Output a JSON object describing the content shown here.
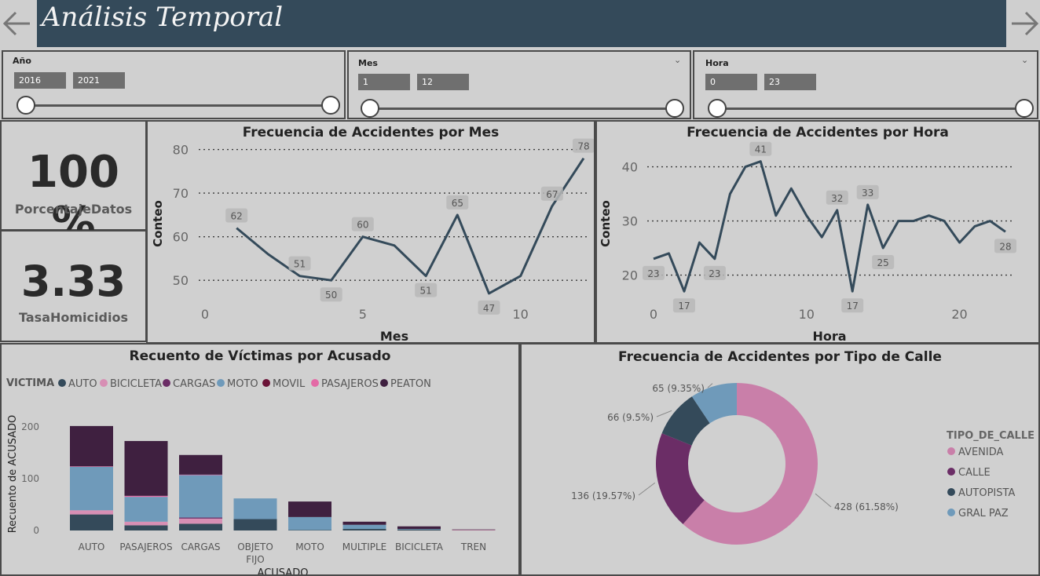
{
  "header": {
    "title": "Análisis Temporal"
  },
  "filters": [
    {
      "label": "Año",
      "from": "2016",
      "to": "2021"
    },
    {
      "label": "Mes",
      "from": "1",
      "to": "12"
    },
    {
      "label": "Hora",
      "from": "0",
      "to": "23"
    }
  ],
  "cards": [
    {
      "value": "100 %",
      "label": "PorcentajeDatos"
    },
    {
      "value": "3.33",
      "label": "TasaHomicidios"
    }
  ],
  "colors": {
    "line": "#344a5a",
    "AUTO": "#344a5a",
    "BICICLETA": "#d78fb4",
    "CARGAS": "#6b2d66",
    "MOTO": "#6f9aba",
    "MOVIL": "#6b1438",
    "PASAJEROS": "#e36aa6",
    "PEATON": "#3f2040",
    "AVENIDA": "#c97fa9",
    "CALLE": "#6b2d66",
    "AUTOPISTA": "#344a5a",
    "GRAL PAZ": "#6f9aba"
  },
  "chart_data": [
    {
      "type": "line",
      "title": "Frecuencia de Accidentes por Mes",
      "xlabel": "Mes",
      "ylabel": "Conteo",
      "x": [
        1,
        2,
        3,
        4,
        5,
        6,
        7,
        8,
        9,
        10,
        11,
        12
      ],
      "values": [
        62,
        56,
        51,
        50,
        60,
        58,
        51,
        65,
        47,
        51,
        67,
        78
      ],
      "data_labels": [
        "62",
        "",
        "51",
        "50",
        "60",
        "",
        "51",
        "65",
        "47",
        "",
        "67",
        "78"
      ],
      "x_ticks": [
        "0",
        "5",
        "10"
      ],
      "y_ticks": [
        "50",
        "60",
        "70",
        "80"
      ],
      "ylim": [
        45,
        81
      ],
      "grid": true
    },
    {
      "type": "line",
      "title": "Frecuencia de Accidentes por Hora",
      "xlabel": "Hora",
      "ylabel": "Conteo",
      "x": [
        0,
        1,
        2,
        3,
        4,
        5,
        6,
        7,
        8,
        9,
        10,
        11,
        12,
        13,
        14,
        15,
        16,
        17,
        18,
        19,
        20,
        21,
        22,
        23
      ],
      "values": [
        23,
        24,
        17,
        26,
        23,
        35,
        40,
        41,
        31,
        36,
        31,
        27,
        32,
        17,
        33,
        25,
        30,
        30,
        31,
        30,
        26,
        29,
        30,
        28
      ],
      "data_labels": [
        "23",
        "",
        "17",
        "",
        "23",
        "",
        "",
        "41",
        "",
        "",
        "",
        "",
        "32",
        "17",
        "33",
        "25",
        "",
        "",
        "",
        "",
        "",
        "",
        "",
        "28"
      ],
      "x_ticks": [
        "0",
        "10",
        "20"
      ],
      "y_ticks": [
        "20",
        "30",
        "40"
      ],
      "ylim": [
        15,
        44
      ],
      "grid": true
    },
    {
      "type": "bar",
      "title": "Recuento de Víctimas por Acusado",
      "xlabel": "ACUSADO",
      "ylabel": "Recuento de ACUSADO",
      "legend_title": "VICTIMA",
      "categories": [
        "AUTO",
        "PASAJEROS",
        "CARGAS",
        "OBJETO FIJO",
        "MOTO",
        "MULTIPLE",
        "BICICLETA",
        "TREN"
      ],
      "series": [
        {
          "name": "AUTO",
          "values": [
            31,
            10,
            13,
            22,
            1,
            3,
            2,
            0
          ]
        },
        {
          "name": "BICICLETA",
          "values": [
            8,
            7,
            10,
            0,
            0,
            0,
            0,
            1
          ]
        },
        {
          "name": "CARGAS",
          "values": [
            0,
            0,
            2,
            0,
            0,
            0,
            0,
            0
          ]
        },
        {
          "name": "MOTO",
          "values": [
            84,
            48,
            82,
            40,
            25,
            8,
            1,
            0
          ]
        },
        {
          "name": "MOVIL",
          "values": [
            0,
            0,
            0,
            0,
            0,
            0,
            0,
            0
          ]
        },
        {
          "name": "PASAJEROS",
          "values": [
            1,
            2,
            1,
            0,
            0,
            0,
            0,
            0
          ]
        },
        {
          "name": "PEATON",
          "values": [
            78,
            106,
            38,
            0,
            30,
            6,
            5,
            1
          ]
        }
      ],
      "y_ticks": [
        "0",
        "100",
        "200"
      ],
      "ylim": [
        0,
        220
      ]
    },
    {
      "type": "pie",
      "title": "Frecuencia de Accidentes por Tipo de Calle",
      "legend_title": "TIPO_DE_CALLE",
      "slices": [
        {
          "name": "AVENIDA",
          "value": 428,
          "label": "428 (61.58%)"
        },
        {
          "name": "CALLE",
          "value": 136,
          "label": "136 (19.57%)"
        },
        {
          "name": "AUTOPISTA",
          "value": 66,
          "label": "66 (9.5%)"
        },
        {
          "name": "GRAL PAZ",
          "value": 65,
          "label": "65 (9.35%)"
        }
      ]
    }
  ]
}
